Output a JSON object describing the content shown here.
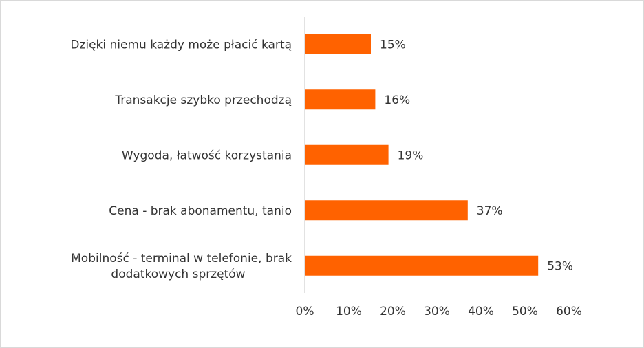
{
  "chart_data": {
    "type": "bar",
    "orientation": "horizontal",
    "categories": [
      "Dzięki niemu każdy może płacić kartą",
      "Transakcje szybko przechodzą",
      "Wygoda, łatwość korzystania",
      "Cena - brak abonamentu, tanio",
      "Mobilność - terminal w telefonie, brak dodatkowych sprzętów"
    ],
    "category_lines": [
      [
        "Dzięki niemu każdy może płacić kartą"
      ],
      [
        "Transakcje szybko przechodzą"
      ],
      [
        "Wygoda, łatwość korzystania"
      ],
      [
        "Cena - brak abonamentu, tanio"
      ],
      [
        "Mobilność - terminal w telefonie, brak",
        "dodatkowych sprzętów"
      ]
    ],
    "values": [
      15,
      16,
      19,
      37,
      53
    ],
    "value_labels": [
      "15%",
      "16%",
      "19%",
      "37%",
      "53%"
    ],
    "x_ticks": [
      0,
      10,
      20,
      30,
      40,
      50,
      60
    ],
    "x_tick_labels": [
      "0%",
      "10%",
      "20%",
      "30%",
      "40%",
      "50%",
      "60%"
    ],
    "xlim": [
      0,
      60
    ],
    "bar_color": "#ff6200",
    "grid": false,
    "legend": "none"
  }
}
